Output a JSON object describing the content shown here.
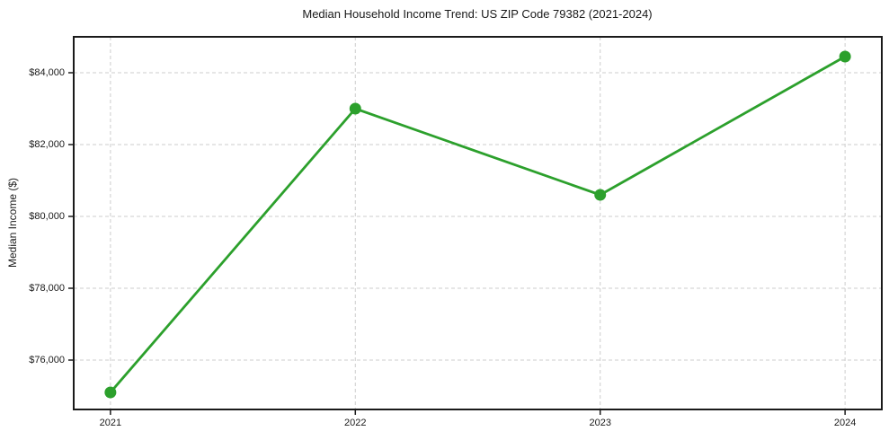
{
  "chart_data": {
    "type": "line",
    "title": "Median Household Income Trend: US ZIP Code 79382 (2021-2024)",
    "xlabel": "",
    "ylabel": "Median Income ($)",
    "categories": [
      2021,
      2022,
      2023,
      2024
    ],
    "xtick_labels": [
      "2021",
      "2022",
      "2023",
      "2024"
    ],
    "series": [
      {
        "values": [
          75100,
          83000,
          80600,
          84450
        ],
        "color": "#2ca02c",
        "marker": "circle"
      }
    ],
    "xlim": [
      2020.85,
      2024.15
    ],
    "ylim": [
      74625,
      85000
    ],
    "yticks": [
      76000,
      78000,
      80000,
      82000,
      84000
    ],
    "ytick_labels": [
      "$76,000",
      "$78,000",
      "$80,000",
      "$82,000",
      "$84,000"
    ],
    "grid": true,
    "grid_style": "dashed",
    "legend_position": "none"
  },
  "colors": {
    "line": "#2ca02c",
    "grid": "#cdcdcd",
    "spine": "#1a1a1a",
    "text": "#1a1a1a",
    "background": "#ffffff"
  }
}
